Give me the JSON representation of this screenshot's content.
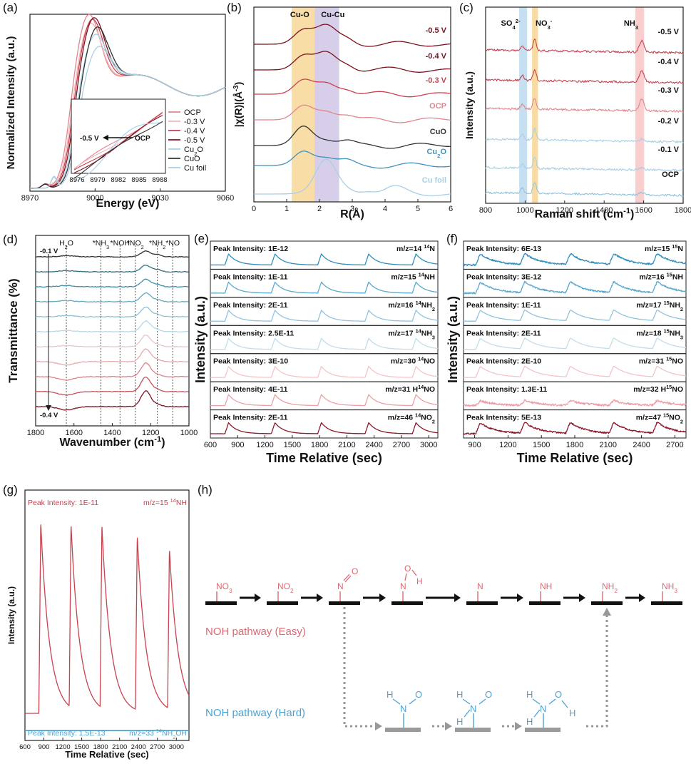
{
  "colors": {
    "dark_red": "#7a1322",
    "red": "#c8424e",
    "pink": "#e08690",
    "light_pink": "#f0b4b9",
    "black": "#333333",
    "blue": "#3e92bd",
    "light_blue": "#a9cfe3",
    "ms_blue": "#2e8fbd",
    "ms_blue2": "#5aa9ce",
    "ms_blue3": "#93c4dc",
    "ms_blue4": "#c3dde9",
    "ms_pink4": "#f3c5c9",
    "ms_pink3": "#eaa0a6",
    "ms_red2": "#cf5862",
    "ms_dark": "#8b1a2b",
    "orange_band": "#f7d28a",
    "purple_band": "#cdc3e3",
    "blue_band": "#b8d8ee",
    "pink_band": "#f7c2c2",
    "text_red": "#d96a73",
    "text_blue": "#4aa3d2",
    "arrow_grey": "#999999"
  },
  "chart_data": [
    {
      "id": "a",
      "panel_label": "(a)",
      "type": "line",
      "xlabel": "Energy (eV)",
      "ylabel": "Normalized Intensity (a.u.)",
      "xlim": [
        8970,
        9060
      ],
      "x_ticks": [
        "8970",
        "9000",
        "9030",
        "9060"
      ],
      "legend": [
        "OCP",
        "-0.3 V",
        "-0.4 V",
        "-0.5 V",
        "Cu2O",
        "CuO",
        "Cu foil"
      ],
      "inset": {
        "x_ticks": [
          "8976",
          "8979",
          "8982",
          "8985",
          "8988"
        ],
        "arrow_from": "OCP",
        "arrow_to": "-0.5 V"
      }
    },
    {
      "id": "b",
      "panel_label": "(b)",
      "type": "line",
      "xlabel": "R(Å)",
      "ylabel": "|χ(R)|(Å-3)",
      "xlim": [
        0,
        6
      ],
      "x_ticks": [
        "0",
        "1",
        "2",
        "3",
        "4",
        "5",
        "6"
      ],
      "bands": [
        "Cu-O",
        "Cu-Cu"
      ],
      "series": [
        {
          "name": "-0.5 V"
        },
        {
          "name": "-0.4 V"
        },
        {
          "name": "-0.3 V"
        },
        {
          "name": "OCP"
        },
        {
          "name": "CuO"
        },
        {
          "name": "Cu2O"
        },
        {
          "name": "Cu foil"
        }
      ]
    },
    {
      "id": "c",
      "panel_label": "(c)",
      "type": "line",
      "xlabel": "Raman shift (cm-1)",
      "ylabel": "Intensity (a.u.)",
      "xlim": [
        800,
        1800
      ],
      "x_ticks": [
        "800",
        "1000",
        "1200",
        "1400",
        "1600",
        "1800"
      ],
      "bands": [
        {
          "label": "SO4 2-",
          "center": 990
        },
        {
          "label": "NO3-",
          "center": 1050
        },
        {
          "label": "NH3",
          "center": 1580
        }
      ],
      "series": [
        {
          "name": "-0.5 V"
        },
        {
          "name": "-0.4 V"
        },
        {
          "name": "-0.3 V"
        },
        {
          "name": "-0.2 V"
        },
        {
          "name": "-0.1 V"
        },
        {
          "name": "OCP"
        }
      ]
    },
    {
      "id": "d",
      "panel_label": "(d)",
      "type": "line",
      "xlabel": "Wavenumber (cm-1)",
      "ylabel": "Transmittance (%)",
      "xlim": [
        1800,
        1000
      ],
      "x_ticks": [
        "1800",
        "1600",
        "1400",
        "1200",
        "1000"
      ],
      "markers": [
        "H2O",
        "*NH3",
        "*NOH",
        "*NO2",
        "*NH2",
        "*NO"
      ],
      "potential_top": "-0.1 V",
      "potential_bottom": "-0.4 V"
    },
    {
      "id": "e",
      "panel_label": "(e)",
      "type": "line",
      "xlabel": "Time Relative (sec)",
      "ylabel": "Intensity (a.u.)",
      "xlim": [
        600,
        3100
      ],
      "x_ticks": [
        "600",
        "900",
        "1200",
        "1500",
        "1800",
        "2100",
        "2400",
        "2700",
        "3000"
      ],
      "peak_times": [
        800,
        1310,
        1820,
        2340,
        2860
      ],
      "rows": [
        {
          "peak": "Peak Intensity: 1E-12",
          "mz": "m/z=14 14N"
        },
        {
          "peak": "Peak Intensity: 1E-11",
          "mz": "m/z=15 14NH"
        },
        {
          "peak": "Peak Intensity: 2E-11",
          "mz": "m/z=16 14NH2"
        },
        {
          "peak": "Peak Intensity: 2.5E-11",
          "mz": "m/z=17 14NH3"
        },
        {
          "peak": "Peak Intensity: 3E-10",
          "mz": "m/z=30 14NO"
        },
        {
          "peak": "Peak Intensity: 4E-11",
          "mz": "m/z=31 H14NO"
        },
        {
          "peak": "Peak Intensity: 2E-11",
          "mz": "m/z=46 14NO2"
        }
      ]
    },
    {
      "id": "f",
      "panel_label": "(f)",
      "type": "line",
      "xlabel": "Time Relative (sec)",
      "ylabel": "Intensity (a.u.)",
      "xlim": [
        800,
        2800
      ],
      "x_ticks": [
        "900",
        "1200",
        "1500",
        "1800",
        "2100",
        "2400",
        "2700"
      ],
      "peak_times": [
        950,
        1350,
        1760,
        2150,
        2540
      ],
      "rows": [
        {
          "peak": "Peak Intensity: 6E-13",
          "mz": "m/z=15 15N"
        },
        {
          "peak": "Peak Intensity: 3E-12",
          "mz": "m/z=16 15NH"
        },
        {
          "peak": "Peak Intensity: 1E-11",
          "mz": "m/z=17 15NH2"
        },
        {
          "peak": "Peak Intensity: 2E-11",
          "mz": "m/z=18 15NH3"
        },
        {
          "peak": "Peak Intensity: 2E-10",
          "mz": "m/z=31 15NO"
        },
        {
          "peak": "Peak Intensity: 1.3E-11",
          "mz": "m/z=32 H15NO"
        },
        {
          "peak": "Peak Intensity: 5E-13",
          "mz": "m/z=47 15NO2"
        }
      ]
    },
    {
      "id": "g",
      "panel_label": "(g)",
      "type": "line",
      "xlabel": "Time Relative (sec)",
      "ylabel": "Intensity (a.u.)",
      "xlim": [
        600,
        3200
      ],
      "x_ticks": [
        "600",
        "900",
        "1200",
        "1500",
        "1800",
        "2100",
        "2400",
        "2700",
        "3000"
      ],
      "peak_times": [
        850,
        1330,
        1820,
        2380,
        2890
      ],
      "series": [
        {
          "peak": "Peak Intensity: 1E-11",
          "mz": "m/z=15 14NH"
        },
        {
          "peak": "Peak Intensity: 1.5E-13",
          "mz": "m/z=33 14NH2OH"
        }
      ]
    }
  ],
  "scheme": {
    "panel_label": "(h)",
    "top_steps": [
      "NO3",
      "NO2",
      "N=O",
      "N-O-H",
      "N",
      "NH",
      "NH2",
      "NH3"
    ],
    "easy_label": "NOH pathway (Easy)",
    "hard_label": "NOH pathway (Hard)",
    "hard_steps": [
      "H2N-O",
      "H2N-O (H)",
      "H2N-O-H"
    ]
  }
}
